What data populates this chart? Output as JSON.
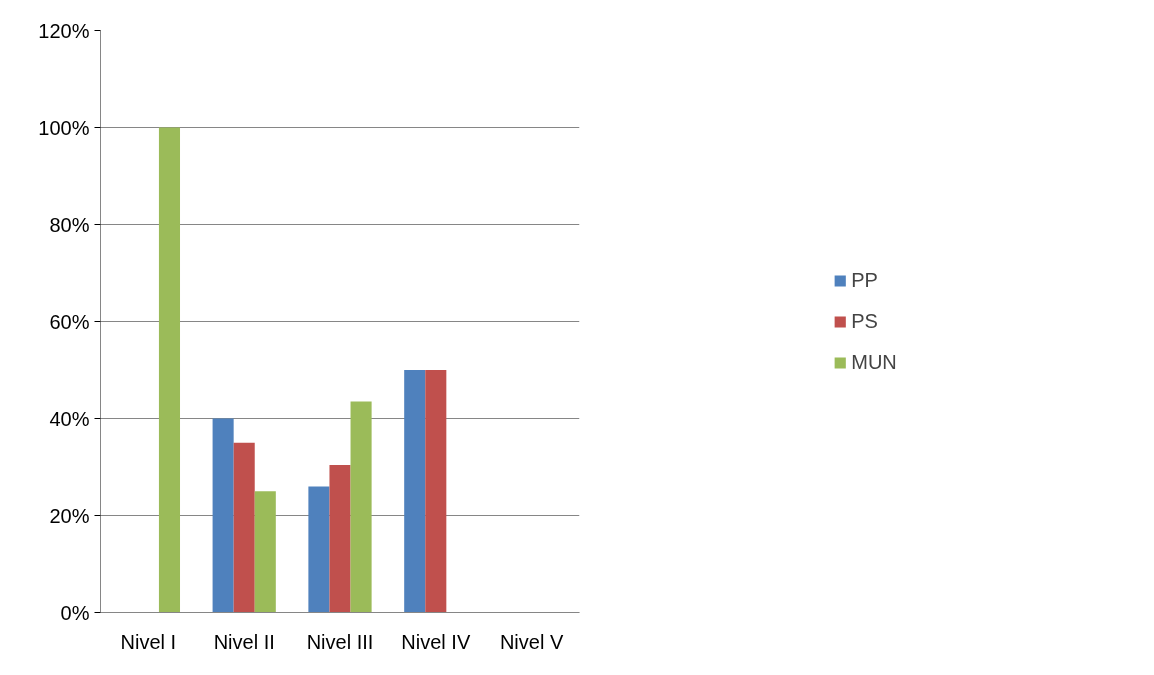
{
  "chart_data": {
    "type": "bar",
    "categories": [
      "Nivel I",
      "Nivel II",
      "Nivel III",
      "Nivel IV",
      "Nivel V"
    ],
    "series": [
      {
        "name": "PP",
        "color": "#4f81bd",
        "values": [
          0,
          40,
          26,
          50,
          0
        ]
      },
      {
        "name": "PS",
        "color": "#c0504d",
        "values": [
          0,
          35,
          30.4,
          50,
          0
        ]
      },
      {
        "name": "MUN",
        "color": "#9bbb59",
        "values": [
          100,
          25,
          43.5,
          0,
          0
        ]
      }
    ],
    "ylim": [
      0,
      120
    ],
    "yticks": [
      {
        "value": 0,
        "label": "0%"
      },
      {
        "value": 20,
        "label": "20%"
      },
      {
        "value": 40,
        "label": "40%"
      },
      {
        "value": 60,
        "label": "60%"
      },
      {
        "value": 80,
        "label": "80%"
      },
      {
        "value": 100,
        "label": "100%"
      },
      {
        "value": 120,
        "label": "120%"
      }
    ],
    "grid": "y",
    "legend": "right"
  }
}
